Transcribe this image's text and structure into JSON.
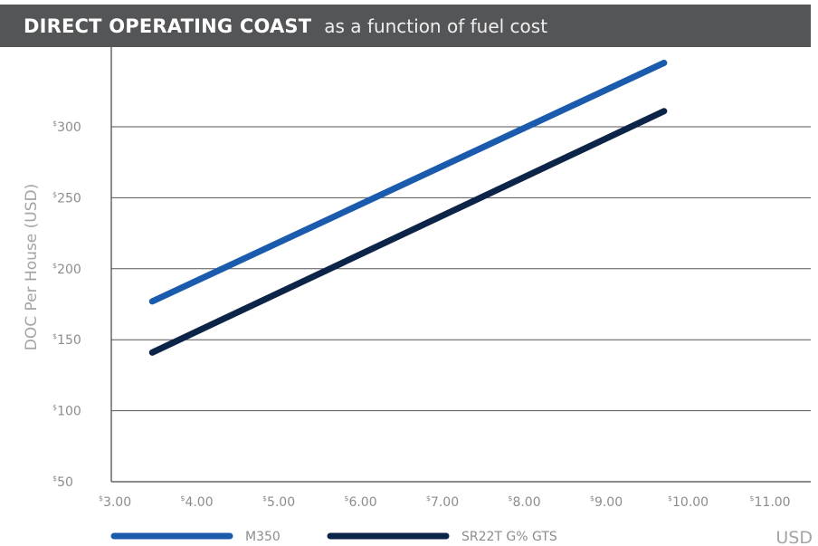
{
  "title": {
    "main": "DIRECT OPERATING COAST",
    "sub": "as a function of fuel cost"
  },
  "chart_data": {
    "type": "line",
    "title": "DIRECT OPERATING COAST",
    "subtitle": "as a function of fuel cost",
    "xlabel": "USD",
    "ylabel": "DOC Per House (USD)",
    "xlim": [
      3.0,
      11.0
    ],
    "ylim": [
      50,
      350
    ],
    "xticks": [
      3,
      4,
      5,
      6,
      7,
      8,
      9,
      10,
      11
    ],
    "xtick_labels": [
      "3.00",
      "4.00",
      "5.00",
      "6.00",
      "7.00",
      "8.00",
      "9.00",
      "10.00",
      "11.00"
    ],
    "yticks": [
      50,
      100,
      150,
      200,
      250,
      300
    ],
    "ytick_labels": [
      "50",
      "100",
      "150",
      "200",
      "250",
      "300"
    ],
    "tick_prefix": "$",
    "grid": "horizontal",
    "legend_position": "bottom",
    "series": [
      {
        "name": "M350",
        "color": "#1a5bad",
        "x": [
          3.5,
          9.75
        ],
        "y": [
          177,
          345
        ]
      },
      {
        "name": "SR22T G% GTS",
        "color": "#0b2448",
        "x": [
          3.5,
          9.75
        ],
        "y": [
          141,
          311
        ]
      }
    ]
  }
}
